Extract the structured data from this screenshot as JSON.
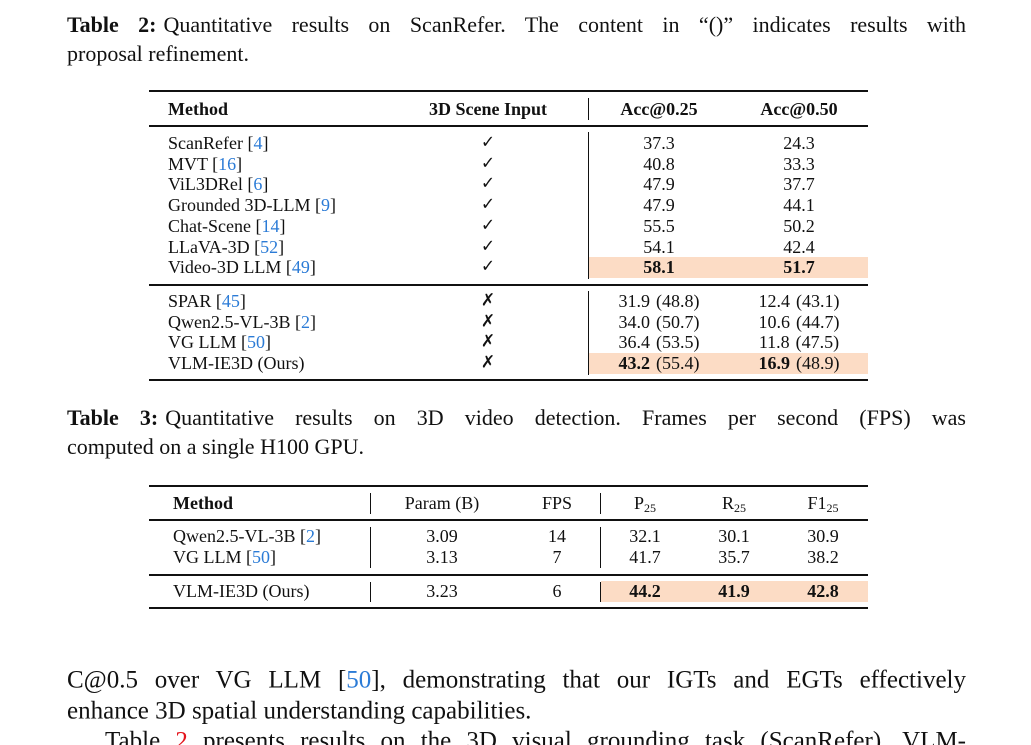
{
  "table2": {
    "caption": {
      "label": "Table 2:",
      "lines": [
        "Quantitative results on ScanRefer. The content in “()” indicates results with",
        "proposal refinement."
      ]
    },
    "header": [
      "Method",
      "3D Scene Input",
      "Acc@0.25",
      "Acc@0.50"
    ],
    "groups": [
      [
        {
          "method": [
            "ScanRefer [",
            {
              "text": "4",
              "link": "cite"
            },
            "]"
          ],
          "input": "✓",
          "acc25": [
            "37.3"
          ],
          "acc50": [
            "24.3"
          ]
        },
        {
          "method": [
            "MVT [",
            {
              "text": "16",
              "link": "cite"
            },
            "]"
          ],
          "input": "✓",
          "acc25": [
            "40.8"
          ],
          "acc50": [
            "33.3"
          ]
        },
        {
          "method": [
            "ViL3DRel [",
            {
              "text": "6",
              "link": "cite"
            },
            "]"
          ],
          "input": "✓",
          "acc25": [
            "47.9"
          ],
          "acc50": [
            "37.7"
          ]
        },
        {
          "method": [
            "Grounded 3D-LLM [",
            {
              "text": "9",
              "link": "cite"
            },
            "]"
          ],
          "input": "✓",
          "acc25": [
            "47.9"
          ],
          "acc50": [
            "44.1"
          ]
        },
        {
          "method": [
            "Chat-Scene [",
            {
              "text": "14",
              "link": "cite"
            },
            "]"
          ],
          "input": "✓",
          "acc25": [
            "55.5"
          ],
          "acc50": [
            "50.2"
          ]
        },
        {
          "method": [
            "LLaVA-3D [",
            {
              "text": "52",
              "link": "cite"
            },
            "]"
          ],
          "input": "✓",
          "acc25": [
            "54.1"
          ],
          "acc50": [
            "42.4"
          ]
        },
        {
          "method": [
            "Video-3D LLM [",
            {
              "text": "49",
              "link": "cite"
            },
            "]"
          ],
          "input": "✓",
          "acc25": [
            "58.1"
          ],
          "acc50": [
            "51.7"
          ],
          "best": true
        }
      ],
      [
        {
          "method": [
            "SPAR [",
            {
              "text": "45",
              "link": "cite"
            },
            "]"
          ],
          "input": "✗",
          "acc25": [
            "31.9",
            "(48.8)"
          ],
          "acc50": [
            "12.4",
            "(43.1)"
          ]
        },
        {
          "method": [
            "Qwen2.5-VL-3B [",
            {
              "text": "2",
              "link": "cite"
            },
            "]"
          ],
          "input": "✗",
          "acc25": [
            "34.0",
            "(50.7)"
          ],
          "acc50": [
            "10.6",
            "(44.7)"
          ]
        },
        {
          "method": [
            "VG LLM [",
            {
              "text": "50",
              "link": "cite"
            },
            "]"
          ],
          "input": "✗",
          "acc25": [
            "36.4",
            "(53.5)"
          ],
          "acc50": [
            "11.8",
            "(47.5)"
          ]
        },
        {
          "method": [
            "VLM-IE3D (Ours)"
          ],
          "input": "✗",
          "acc25": [
            "43.2",
            "(55.4)"
          ],
          "acc50": [
            "16.9",
            "(48.9)"
          ],
          "best": true
        }
      ]
    ]
  },
  "table3": {
    "caption": {
      "label": "Table 3:",
      "lines": [
        "Quantitative results on 3D video detection. Frames per second (FPS) was",
        "computed on a single H100 GPU."
      ]
    },
    "header": [
      "Method",
      "Param (B)",
      "FPS",
      {
        "main": "P",
        "sub": "25"
      },
      {
        "main": "R",
        "sub": "25"
      },
      {
        "main": "F1",
        "sub": "25"
      }
    ],
    "groups": [
      [
        {
          "method": [
            "Qwen2.5-VL-3B [",
            {
              "text": "2",
              "link": "cite"
            },
            "]"
          ],
          "cells": [
            "3.09",
            "14",
            "32.1",
            "30.1",
            "30.9"
          ]
        },
        {
          "method": [
            "VG LLM [",
            {
              "text": "50",
              "link": "cite"
            },
            "]"
          ],
          "cells": [
            "3.13",
            "7",
            "41.7",
            "35.7",
            "38.2"
          ]
        }
      ],
      [
        {
          "method": [
            "VLM-IE3D (Ours)"
          ],
          "cells": [
            "3.23",
            "6",
            "44.2",
            "41.9",
            "42.8"
          ],
          "best": true
        }
      ]
    ]
  },
  "body": {
    "lines": [
      [
        "C@0.5 over VG LLM [",
        {
          "text": "50",
          "link": "cite"
        },
        "], demonstrating that our IGTs and EGTs effectively"
      ],
      [
        "enhance 3D spatial understanding capabilities."
      ],
      [
        "Table ",
        {
          "text": "2",
          "link": "ref"
        },
        " presents results on the 3D visual grounding task (ScanRefer). VLM-"
      ]
    ]
  },
  "style": {
    "link_colors": {
      "cite": "#2b7bd6",
      "ref": "#e3141c"
    },
    "highlight": "#fcdcc5"
  }
}
